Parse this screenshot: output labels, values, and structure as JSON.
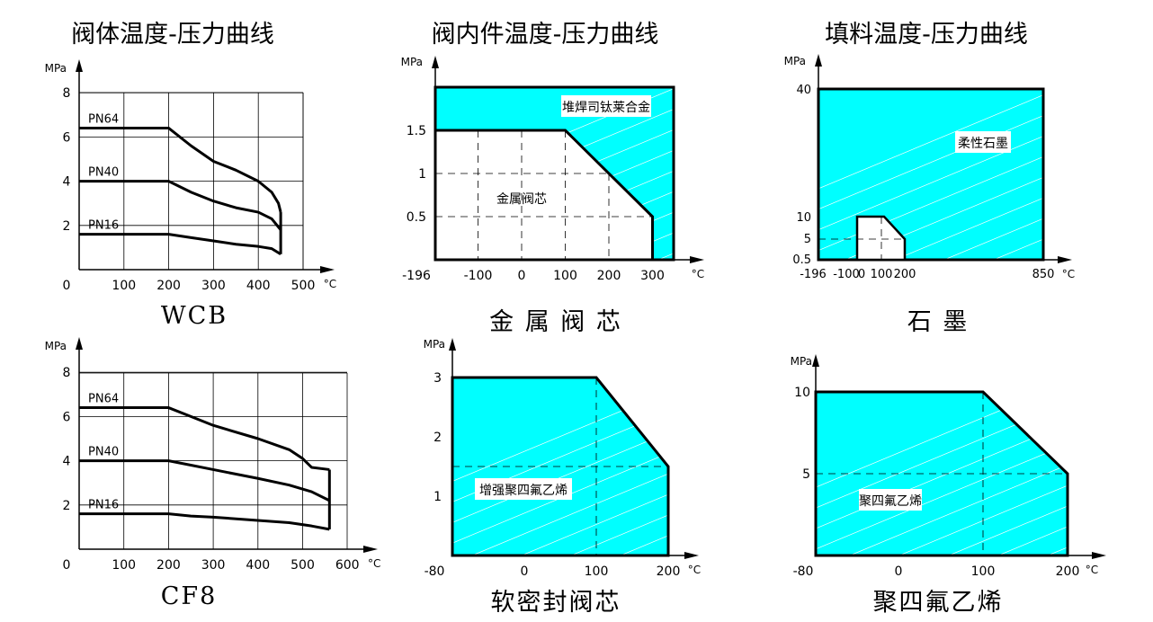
{
  "column_titles": [
    "阀体温度-压力曲线",
    "阀内件温度-压力曲线",
    "填料温度-压力曲线"
  ],
  "colors": {
    "fill": "#00ffff",
    "line": "#000000",
    "grid": "#000000"
  },
  "chart_data": [
    {
      "id": "wcb",
      "type": "line",
      "caption": "WCB",
      "ylabel": "MPa",
      "xunit": "°C",
      "xticks": [
        0,
        100,
        200,
        300,
        400,
        500
      ],
      "yticks": [
        2,
        4,
        6,
        8
      ],
      "series": [
        {
          "name": "PN64",
          "x": [
            20,
            200,
            250,
            300,
            350,
            400,
            430,
            445,
            450
          ],
          "y": [
            6.4,
            6.4,
            5.6,
            4.9,
            4.5,
            4.0,
            3.5,
            3.0,
            2.6
          ]
        },
        {
          "name": "PN40",
          "x": [
            20,
            200,
            250,
            300,
            350,
            400,
            430,
            450
          ],
          "y": [
            4.0,
            4.0,
            3.5,
            3.1,
            2.8,
            2.6,
            2.3,
            1.8
          ]
        },
        {
          "name": "PN16",
          "x": [
            20,
            200,
            250,
            300,
            350,
            400,
            430,
            450
          ],
          "y": [
            1.6,
            1.6,
            1.45,
            1.3,
            1.15,
            1.05,
            0.95,
            0.7
          ]
        }
      ],
      "series_end": {
        "x": 450,
        "ybottom": 0.7,
        "ytop": 2.6
      }
    },
    {
      "id": "cf8",
      "type": "line",
      "caption": "CF8",
      "ylabel": "MPa",
      "xunit": "°C",
      "xticks": [
        0,
        100,
        200,
        300,
        400,
        500,
        600
      ],
      "yticks": [
        2,
        4,
        6,
        8
      ],
      "series": [
        {
          "name": "PN64",
          "x": [
            20,
            200,
            250,
            300,
            400,
            470,
            500,
            520,
            560
          ],
          "y": [
            6.4,
            6.4,
            6.0,
            5.6,
            5.0,
            4.5,
            4.1,
            3.7,
            3.6
          ]
        },
        {
          "name": "PN40",
          "x": [
            20,
            200,
            250,
            300,
            400,
            470,
            520,
            560
          ],
          "y": [
            4.0,
            4.0,
            3.8,
            3.6,
            3.2,
            2.9,
            2.6,
            2.2
          ]
        },
        {
          "name": "PN16",
          "x": [
            20,
            200,
            250,
            300,
            400,
            470,
            520,
            560
          ],
          "y": [
            1.6,
            1.6,
            1.5,
            1.45,
            1.3,
            1.2,
            1.05,
            0.9
          ]
        }
      ],
      "series_end": {
        "x": 560,
        "ybottom": 0.9,
        "ytop": 3.6
      }
    },
    {
      "id": "metal",
      "type": "area",
      "caption": "金 属 阀 芯",
      "ylabel": "MPa",
      "xunit": "°C",
      "xticks": [
        "-196",
        "-100",
        "0",
        "100",
        "200",
        "300"
      ],
      "yticks": [
        "0.5",
        "1",
        "1.5"
      ],
      "outer_label": "堆焊司钛莱合金",
      "inner_label": "金属阀芯",
      "outer_region": {
        "x": [
          -196,
          350
        ],
        "y_top": 2.0
      },
      "inner_region": {
        "x": [
          -196,
          100,
          300,
          300
        ],
        "y": [
          1.5,
          1.5,
          0.5,
          0
        ]
      }
    },
    {
      "id": "graphite",
      "type": "area",
      "caption": "石   墨",
      "ylabel": "MPa",
      "xunit": "°C",
      "xticks": [
        "-196",
        "-100",
        "0",
        "100",
        "200",
        "850"
      ],
      "yticks": [
        "0.5",
        "5",
        "10",
        "40"
      ],
      "outer_label": "柔性石墨",
      "outer_region": {
        "x": [
          -196,
          850
        ],
        "y_top": 40
      },
      "inner_region": {
        "x": [
          0,
          100,
          200,
          200
        ],
        "y": [
          10,
          10,
          5,
          0.5
        ]
      }
    },
    {
      "id": "rptfe",
      "type": "area",
      "caption": "软密封阀芯",
      "ylabel": "MPa",
      "xunit": "°C",
      "xticks": [
        "-80",
        "0",
        "100",
        "200"
      ],
      "yticks": [
        "1",
        "2",
        "3"
      ],
      "label": "增强聚四氟乙烯",
      "region": {
        "x": [
          -80,
          100,
          200,
          200
        ],
        "y": [
          3,
          3,
          1.5,
          0
        ]
      }
    },
    {
      "id": "ptfe",
      "type": "area",
      "caption": "聚四氟乙烯",
      "ylabel": "MPa",
      "xunit": "°C",
      "xticks": [
        "-80",
        "0",
        "100",
        "200"
      ],
      "yticks": [
        "5",
        "10"
      ],
      "label": "聚四氟乙烯",
      "region": {
        "x": [
          -80,
          100,
          200,
          200
        ],
        "y": [
          10,
          10,
          5,
          0
        ]
      }
    }
  ]
}
